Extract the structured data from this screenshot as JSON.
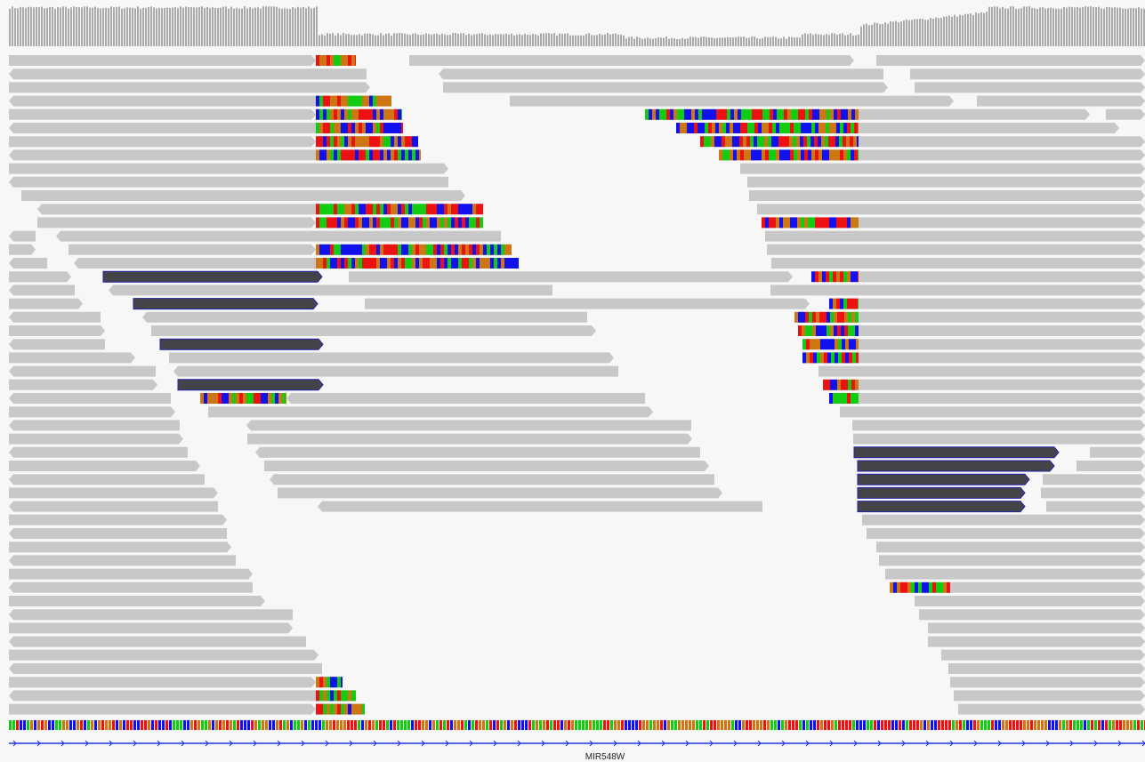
{
  "gene_track": {
    "label": "MIR548W"
  }
}
